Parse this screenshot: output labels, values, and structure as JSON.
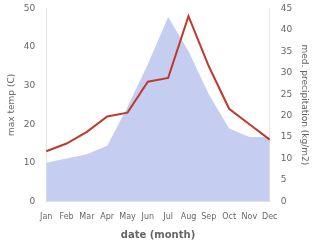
{
  "chart_data": {
    "type": "line",
    "categories": [
      "Jan",
      "Feb",
      "Mar",
      "Apr",
      "May",
      "Jun",
      "Jul",
      "Aug",
      "Sep",
      "Oct",
      "Nov",
      "Dec"
    ],
    "xlabel": "date (month)",
    "ylabel": "max temp (C)",
    "y2label": "med. precipitation (kg/m2)",
    "ylim": [
      0,
      50
    ],
    "yticks": [
      0,
      10,
      20,
      30,
      40,
      50
    ],
    "y2lim": [
      0,
      45
    ],
    "y2ticks": [
      0,
      5,
      10,
      15,
      20,
      25,
      30,
      35,
      40,
      45
    ],
    "grid": false,
    "series": [
      {
        "type": "area",
        "color": "#c5cdf0",
        "axis": "y2",
        "values": [
          9,
          10,
          11,
          13,
          22,
          32,
          43,
          35,
          25,
          17,
          15,
          15
        ]
      },
      {
        "type": "line",
        "color": "#c0392b",
        "values": [
          13,
          15,
          18,
          22,
          23,
          31,
          32,
          48,
          35,
          24,
          20,
          16
        ]
      }
    ]
  }
}
